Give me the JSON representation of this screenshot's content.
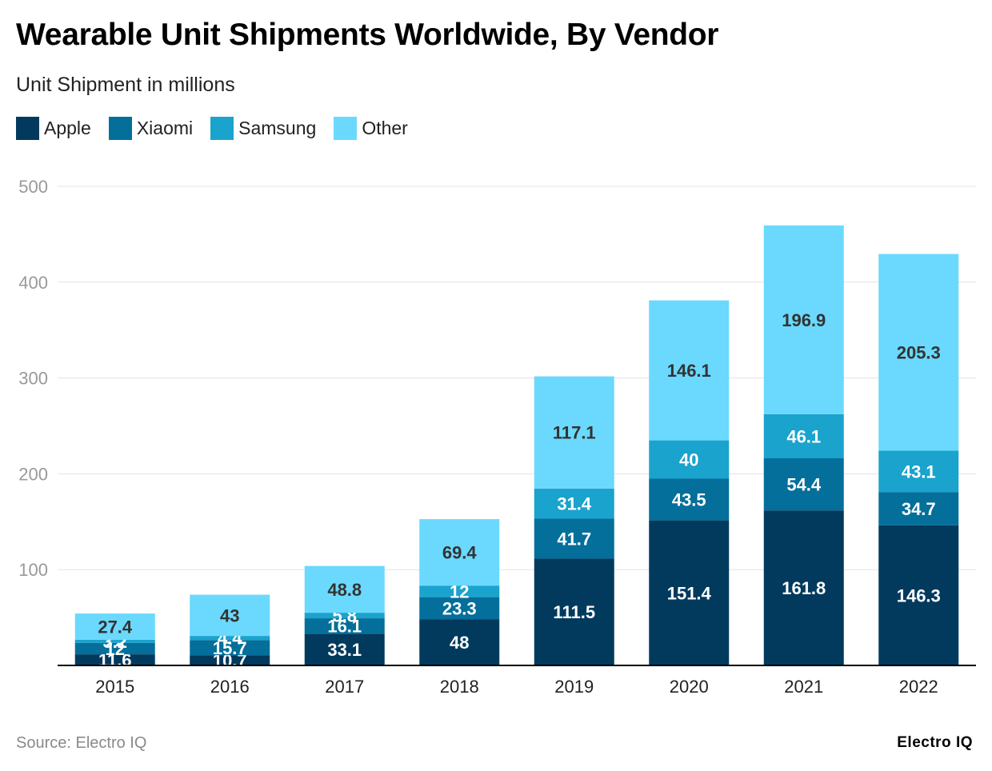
{
  "title": "Wearable Unit Shipments Worldwide, By Vendor",
  "subtitle": "Unit Shipment in millions",
  "source": "Source: Electro IQ",
  "brand": "Electro IQ",
  "colors": {
    "Apple": "#023a5e",
    "Xiaomi": "#046f9a",
    "Samsung": "#1aa3cd",
    "Other": "#6ad9fd",
    "grid": "#e3e3e3",
    "tick": "#999999",
    "axis": "#000000"
  },
  "chart_data": {
    "type": "bar",
    "stacked": true,
    "categories": [
      "2015",
      "2016",
      "2017",
      "2018",
      "2019",
      "2020",
      "2021",
      "2022"
    ],
    "series": [
      {
        "name": "Apple",
        "values": [
          11.6,
          10.7,
          33.1,
          48,
          111.5,
          151.4,
          161.8,
          146.3
        ]
      },
      {
        "name": "Xiaomi",
        "values": [
          12,
          15.7,
          16.1,
          23.3,
          41.7,
          43.5,
          54.4,
          34.7
        ]
      },
      {
        "name": "Samsung",
        "values": [
          3.2,
          4.4,
          5.8,
          12,
          31.4,
          40,
          46.1,
          43.1
        ]
      },
      {
        "name": "Other",
        "values": [
          27.4,
          43,
          48.8,
          69.4,
          117.1,
          146.1,
          196.9,
          205.3
        ]
      }
    ],
    "yticks": [
      100,
      200,
      300,
      400,
      500
    ],
    "ylim": [
      0,
      500
    ],
    "grid": true,
    "legend": "top-left"
  }
}
